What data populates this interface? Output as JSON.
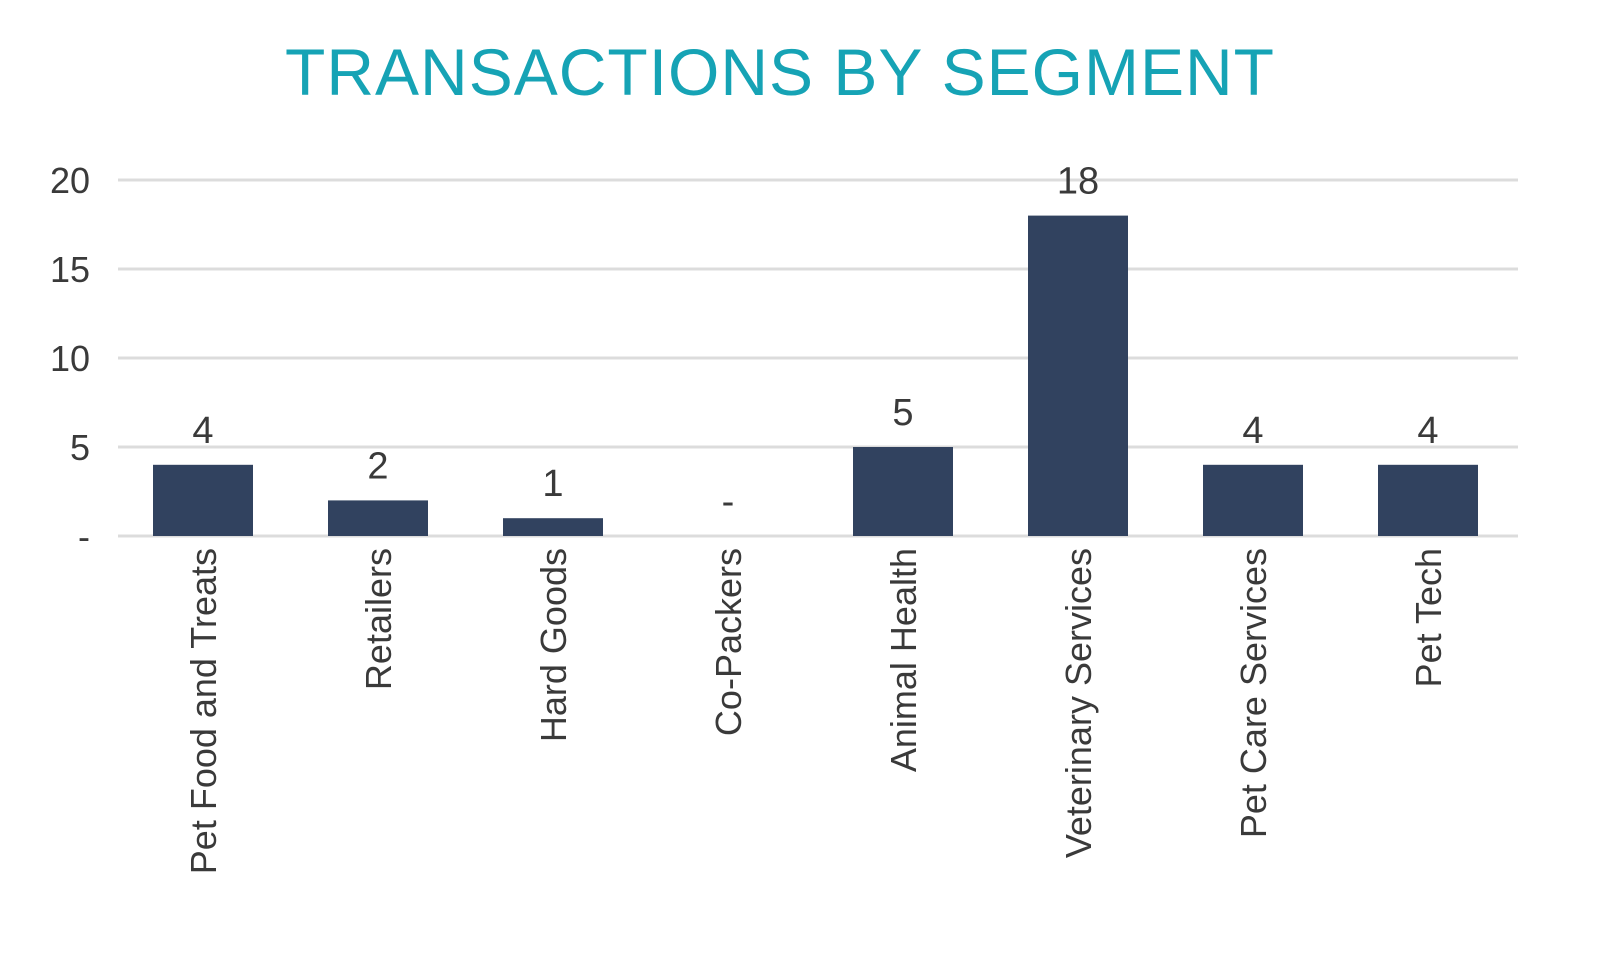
{
  "chart_data": {
    "type": "bar",
    "title": "TRANSACTIONS BY SEGMENT",
    "xlabel": "",
    "ylabel": "",
    "categories": [
      "Pet Food and Treats",
      "Retailers",
      "Hard Goods",
      "Co-Packers",
      "Animal Health",
      "Veterinary Services",
      "Pet Care Services",
      "Pet Tech"
    ],
    "values": [
      4,
      2,
      1,
      0,
      5,
      18,
      4,
      4
    ],
    "data_labels": [
      "4",
      "2",
      "1",
      "-",
      "5",
      "18",
      "4",
      "4"
    ],
    "yticks": [
      0,
      5,
      10,
      15,
      20
    ],
    "ytick_labels": [
      "-",
      "5",
      "10",
      "15",
      "20"
    ],
    "ylim": [
      0,
      20
    ],
    "grid": true,
    "legend": "none"
  },
  "colors": {
    "title": "#16a3b5",
    "bar": "#31425f",
    "grid": "#dcdcdc",
    "text": "#3a3a3a"
  }
}
